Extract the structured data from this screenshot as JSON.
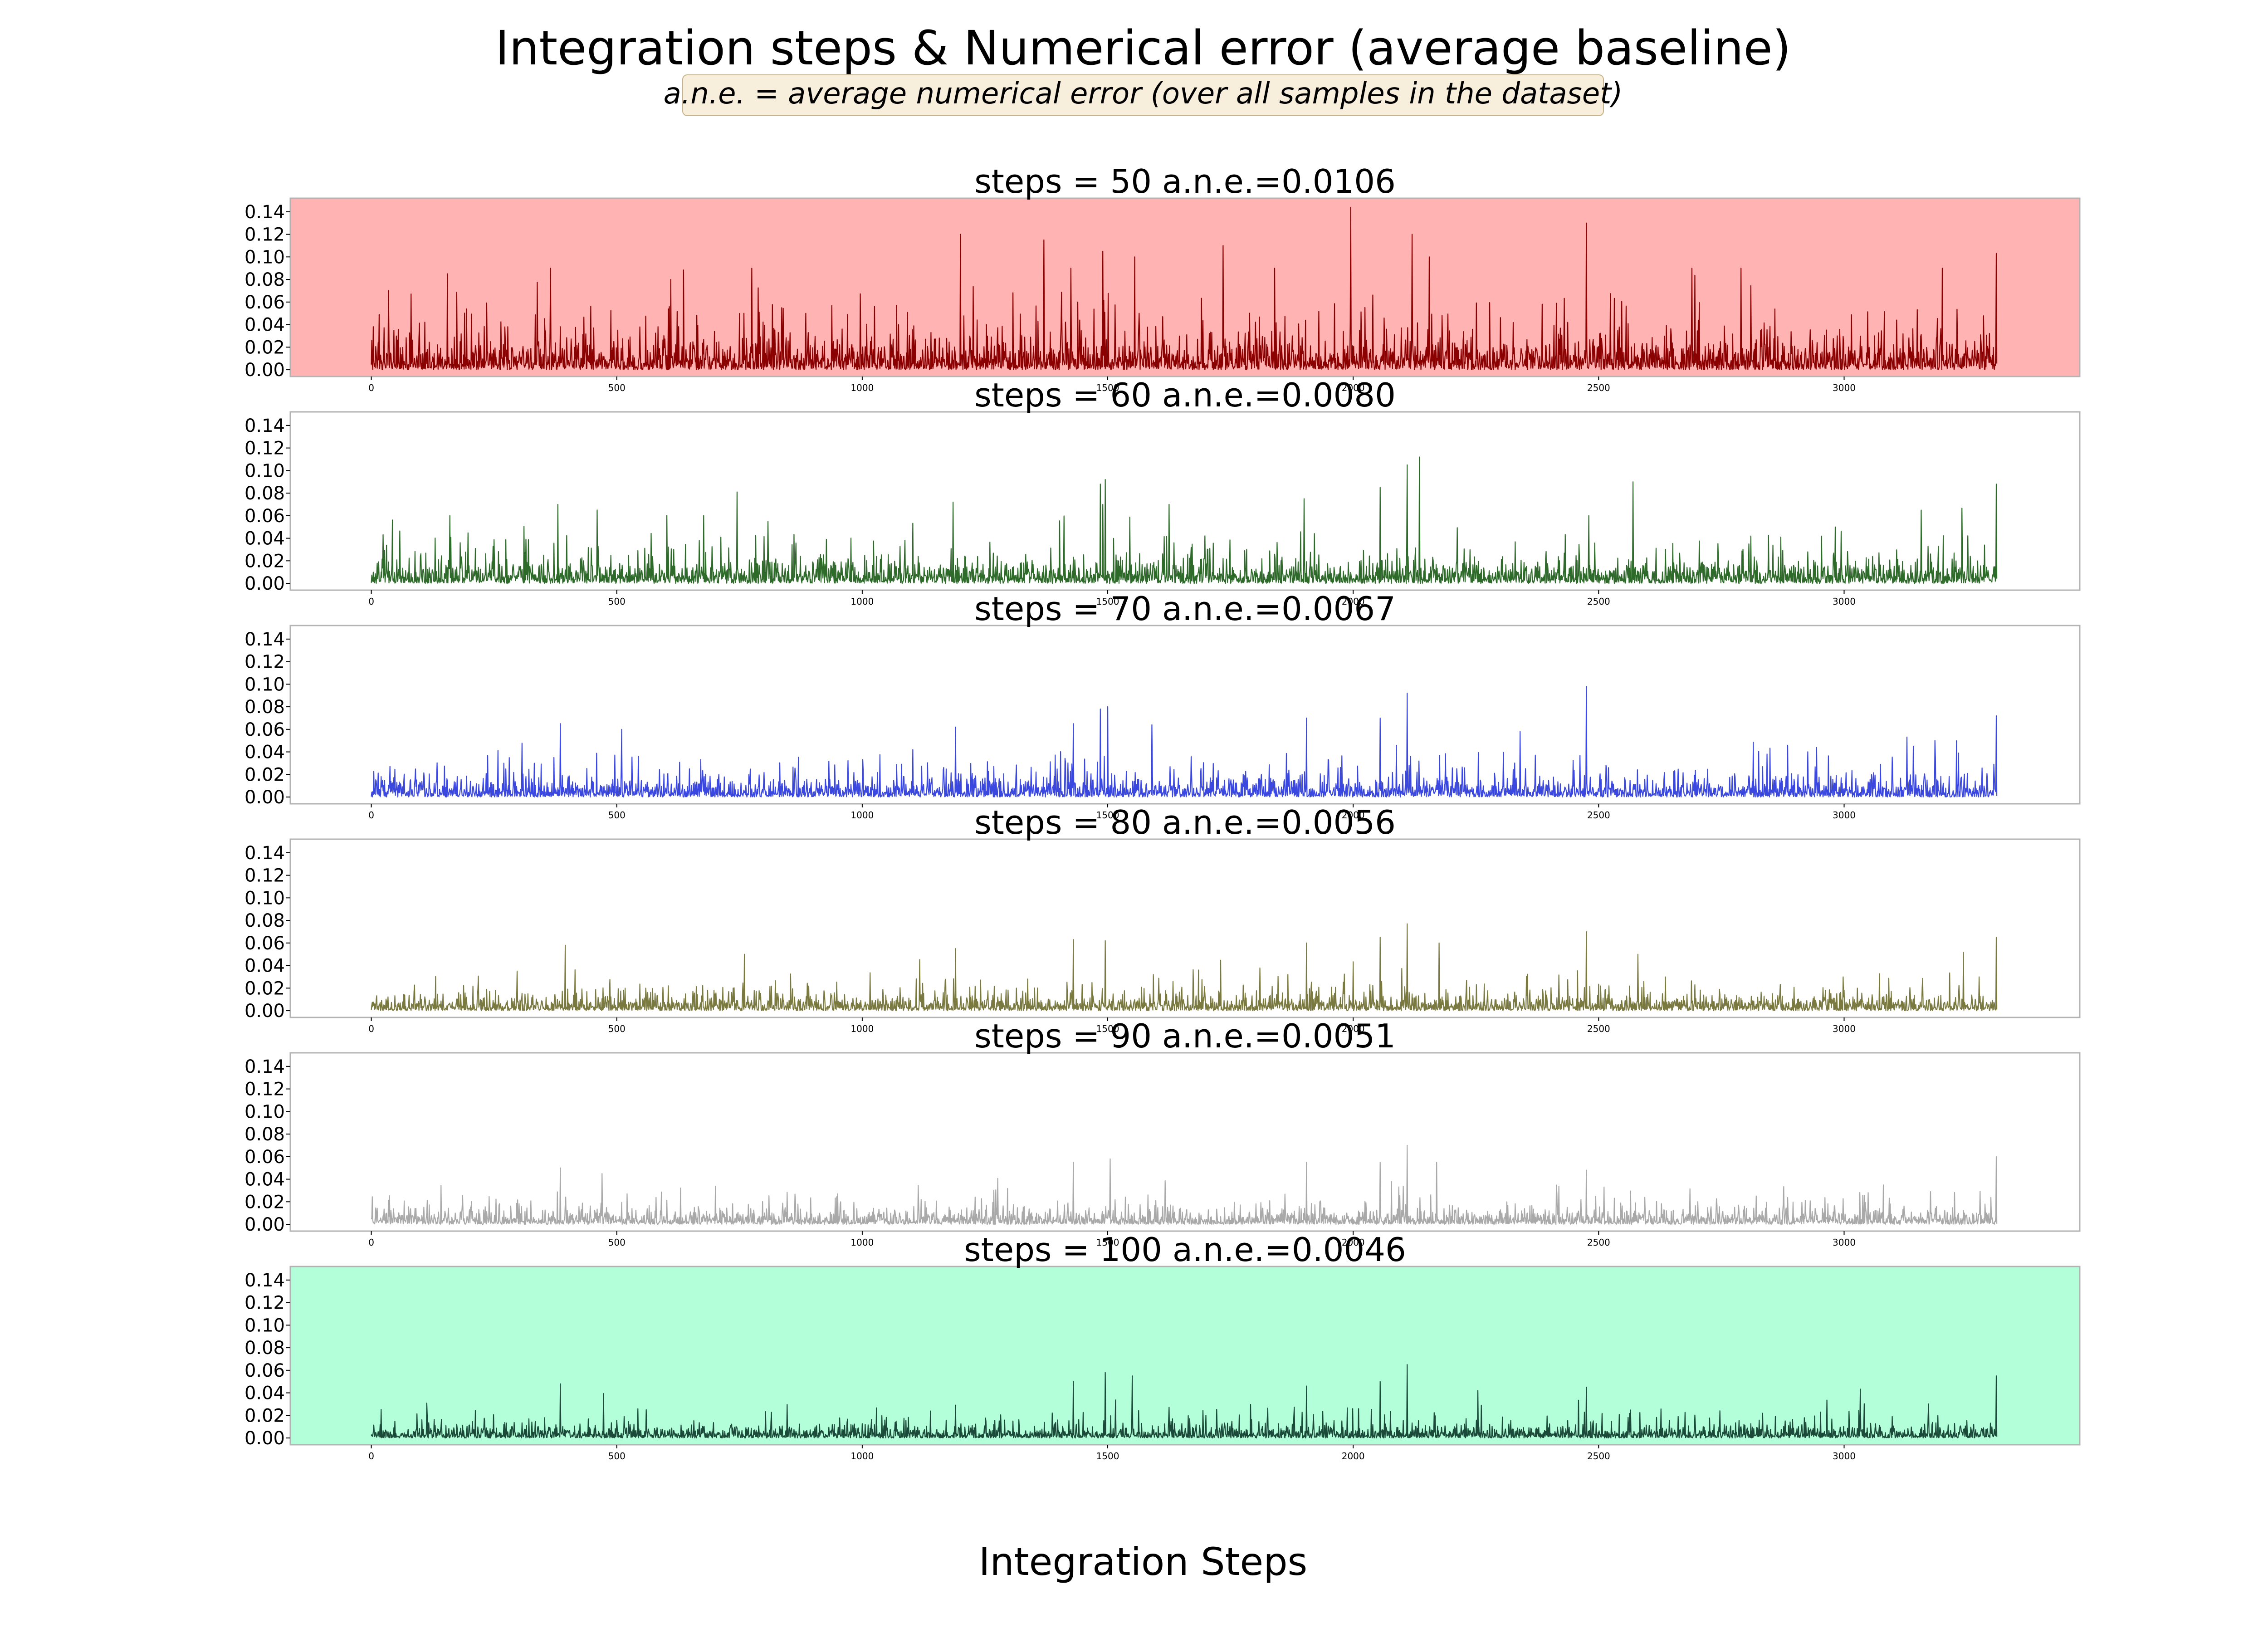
{
  "figure": {
    "title": "Integration steps & Numerical error (average baseline)",
    "subtitle": "a.n.e. = average numerical error (over all samples in the dataset)",
    "subtitle_box_color": "#f8eedc",
    "xlabel": "Integration Steps"
  },
  "chart_data": [
    {
      "type": "line",
      "title": "steps = 50 a.n.e.=0.0106",
      "background": "#ffb3b3",
      "series_color": "#8b0000",
      "xlim": [
        -165,
        3480
      ],
      "ylim": [
        -0.006,
        0.152
      ],
      "xticks": [
        0,
        500,
        1000,
        1500,
        2000,
        2500,
        3000
      ],
      "yticks": [
        0.0,
        0.02,
        0.04,
        0.06,
        0.08,
        0.1,
        0.12,
        0.14
      ],
      "ytick_labels": [
        "0.00",
        "0.02",
        "0.04",
        "0.06",
        "0.08",
        "0.10",
        "0.12",
        "0.14"
      ],
      "n_samples": 3312,
      "mean": 0.0106,
      "seed": 50,
      "peaks": [
        [
          1200,
          0.12
        ],
        [
          1995,
          0.144
        ],
        [
          2475,
          0.13
        ],
        [
          1370,
          0.115
        ],
        [
          1735,
          0.11
        ],
        [
          2155,
          0.1
        ],
        [
          3310,
          0.103
        ],
        [
          1490,
          0.105
        ],
        [
          2120,
          0.12
        ],
        [
          365,
          0.09
        ],
        [
          2790,
          0.09
        ],
        [
          1555,
          0.1
        ],
        [
          1840,
          0.09
        ],
        [
          610,
          0.08
        ],
        [
          2690,
          0.09
        ],
        [
          3200,
          0.09
        ],
        [
          775,
          0.09
        ],
        [
          1425,
          0.09
        ],
        [
          155,
          0.085
        ]
      ]
    },
    {
      "type": "line",
      "title": "steps = 60 a.n.e.=0.0080",
      "background": "#ffffff",
      "series_color": "#2e6b2a",
      "xlim": [
        -165,
        3480
      ],
      "ylim": [
        -0.006,
        0.152
      ],
      "xticks": [
        0,
        500,
        1000,
        1500,
        2000,
        2500,
        3000
      ],
      "yticks": [
        0.0,
        0.02,
        0.04,
        0.06,
        0.08,
        0.1,
        0.12,
        0.14
      ],
      "ytick_labels": [
        "0.00",
        "0.02",
        "0.04",
        "0.06",
        "0.08",
        "0.10",
        "0.12",
        "0.14"
      ],
      "n_samples": 3312,
      "mean": 0.008,
      "seed": 60,
      "peaks": [
        [
          2135,
          0.112
        ],
        [
          2110,
          0.105
        ],
        [
          1495,
          0.092
        ],
        [
          1485,
          0.088
        ],
        [
          2570,
          0.09
        ],
        [
          3310,
          0.088
        ],
        [
          745,
          0.081
        ],
        [
          2055,
          0.085
        ],
        [
          1900,
          0.075
        ],
        [
          1490,
          0.07
        ],
        [
          1185,
          0.072
        ],
        [
          1625,
          0.07
        ],
        [
          2480,
          0.06
        ],
        [
          380,
          0.07
        ],
        [
          460,
          0.065
        ],
        [
          160,
          0.06
        ]
      ]
    },
    {
      "type": "line",
      "title": "steps = 70 a.n.e.=0.0067",
      "background": "#ffffff",
      "series_color": "#3b48e0",
      "xlim": [
        -165,
        3480
      ],
      "ylim": [
        -0.006,
        0.152
      ],
      "xticks": [
        0,
        500,
        1000,
        1500,
        2000,
        2500,
        3000
      ],
      "yticks": [
        0.0,
        0.02,
        0.04,
        0.06,
        0.08,
        0.1,
        0.12,
        0.14
      ],
      "ytick_labels": [
        "0.00",
        "0.02",
        "0.04",
        "0.06",
        "0.08",
        "0.10",
        "0.12",
        "0.14"
      ],
      "n_samples": 3312,
      "mean": 0.0067,
      "seed": 70,
      "peaks": [
        [
          2475,
          0.098
        ],
        [
          2110,
          0.092
        ],
        [
          1500,
          0.08
        ],
        [
          1485,
          0.078
        ],
        [
          3310,
          0.072
        ],
        [
          2055,
          0.07
        ],
        [
          1905,
          0.07
        ],
        [
          1190,
          0.062
        ],
        [
          1590,
          0.064
        ],
        [
          385,
          0.065
        ],
        [
          510,
          0.06
        ],
        [
          1430,
          0.065
        ],
        [
          2340,
          0.058
        ],
        [
          3185,
          0.05
        ]
      ]
    },
    {
      "type": "line",
      "title": "steps = 80 a.n.e.=0.0056",
      "background": "#ffffff",
      "series_color": "#7a7a40",
      "xlim": [
        -165,
        3480
      ],
      "ylim": [
        -0.006,
        0.152
      ],
      "xticks": [
        0,
        500,
        1000,
        1500,
        2000,
        2500,
        3000
      ],
      "yticks": [
        0.0,
        0.02,
        0.04,
        0.06,
        0.08,
        0.1,
        0.12,
        0.14
      ],
      "ytick_labels": [
        "0.00",
        "0.02",
        "0.04",
        "0.06",
        "0.08",
        "0.10",
        "0.12",
        "0.14"
      ],
      "n_samples": 3312,
      "mean": 0.0056,
      "seed": 80,
      "peaks": [
        [
          2110,
          0.077
        ],
        [
          2475,
          0.07
        ],
        [
          3310,
          0.065
        ],
        [
          1495,
          0.062
        ],
        [
          1430,
          0.063
        ],
        [
          2055,
          0.065
        ],
        [
          1905,
          0.06
        ],
        [
          395,
          0.058
        ],
        [
          1190,
          0.055
        ],
        [
          2580,
          0.05
        ],
        [
          760,
          0.05
        ],
        [
          2175,
          0.06
        ]
      ]
    },
    {
      "type": "line",
      "title": "steps = 90 a.n.e.=0.0051",
      "background": "#ffffff",
      "series_color": "#a9a9a9",
      "xlim": [
        -165,
        3480
      ],
      "ylim": [
        -0.006,
        0.152
      ],
      "xticks": [
        0,
        500,
        1000,
        1500,
        2000,
        2500,
        3000
      ],
      "yticks": [
        0.0,
        0.02,
        0.04,
        0.06,
        0.08,
        0.1,
        0.12,
        0.14
      ],
      "ytick_labels": [
        "0.00",
        "0.02",
        "0.04",
        "0.06",
        "0.08",
        "0.10",
        "0.12",
        "0.14"
      ],
      "n_samples": 3312,
      "mean": 0.0051,
      "seed": 90,
      "peaks": [
        [
          2110,
          0.07
        ],
        [
          3310,
          0.06
        ],
        [
          1505,
          0.058
        ],
        [
          2055,
          0.055
        ],
        [
          1905,
          0.055
        ],
        [
          1430,
          0.055
        ],
        [
          2170,
          0.055
        ],
        [
          2475,
          0.048
        ],
        [
          385,
          0.05
        ],
        [
          470,
          0.045
        ]
      ]
    },
    {
      "type": "line",
      "title": "steps = 100 a.n.e.=0.0046",
      "background": "#b3ffd9",
      "series_color": "#1c4a3a",
      "xlim": [
        -165,
        3480
      ],
      "ylim": [
        -0.006,
        0.152
      ],
      "xticks": [
        0,
        500,
        1000,
        1500,
        2000,
        2500,
        3000
      ],
      "yticks": [
        0.0,
        0.02,
        0.04,
        0.06,
        0.08,
        0.1,
        0.12,
        0.14
      ],
      "ytick_labels": [
        "0.00",
        "0.02",
        "0.04",
        "0.06",
        "0.08",
        "0.10",
        "0.12",
        "0.14"
      ],
      "n_samples": 3312,
      "mean": 0.0046,
      "seed": 100,
      "peaks": [
        [
          2110,
          0.065
        ],
        [
          1495,
          0.058
        ],
        [
          3310,
          0.055
        ],
        [
          1550,
          0.055
        ],
        [
          2055,
          0.05
        ],
        [
          1430,
          0.05
        ],
        [
          385,
          0.048
        ],
        [
          1905,
          0.046
        ],
        [
          2475,
          0.045
        ]
      ]
    }
  ]
}
